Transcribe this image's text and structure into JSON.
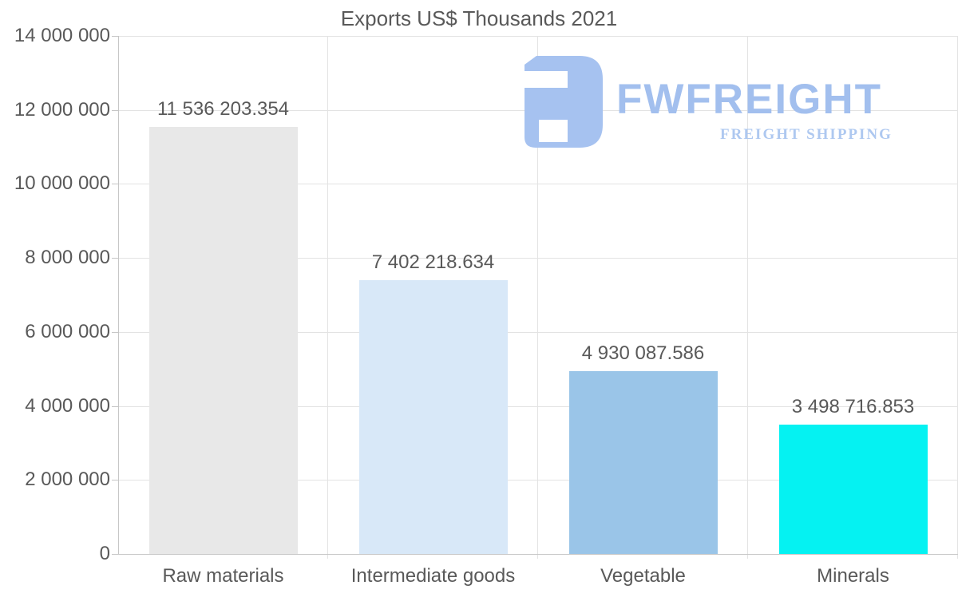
{
  "title": "Exports US$ Thousands 2021",
  "logo": {
    "name": "FWFREIGHT",
    "tagline": "FREIGHT SHIPPING",
    "mark_color": "#a6c2f0",
    "name_color": "#a2bfee",
    "tagline_color": "#aec8f0"
  },
  "colors": {
    "text": "#595959",
    "grid": "#e3e3e3",
    "axis": "#c6c6c6",
    "background": "#ffffff"
  },
  "chart_data": {
    "type": "bar",
    "title": "Exports US$ Thousands 2021",
    "xlabel": "",
    "ylabel": "",
    "categories": [
      "Raw materials",
      "Intermediate goods",
      "Vegetable",
      "Minerals"
    ],
    "values": [
      11536203.354,
      7402218.634,
      4930087.586,
      3498716.853
    ],
    "value_labels": [
      "11 536 203.354",
      "7 402 218.634",
      "4 930 087.586",
      "3 498 716.853"
    ],
    "bar_colors": [
      "#e8e8e8",
      "#d8e8f8",
      "#9ac5e8",
      "#05f2f2"
    ],
    "ylim": [
      0,
      14000000
    ],
    "y_ticks": [
      0,
      2000000,
      4000000,
      6000000,
      8000000,
      10000000,
      12000000,
      14000000
    ],
    "y_tick_labels": [
      "0",
      "2 000 000",
      "4 000 000",
      "6 000 000",
      "8 000 000",
      "10 000 000",
      "12 000 000",
      "14 000 000"
    ],
    "grid": true,
    "legend": false
  }
}
